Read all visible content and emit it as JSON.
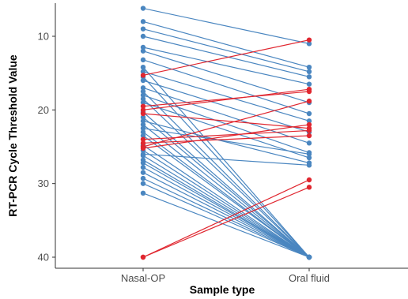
{
  "chart_data": {
    "type": "line",
    "xlabel": "Sample type",
    "ylabel": "RT-PCR Cycle Threshold Value",
    "categories": [
      "Nasal-OP",
      "Oral fluid"
    ],
    "y_reversed": true,
    "ylim": [
      5.5,
      41.5
    ],
    "y_ticks": [
      10,
      20,
      30,
      40
    ],
    "grid": false,
    "legend": "none",
    "colors": {
      "blue": "#4a86c0",
      "red": "#e0262f",
      "axis": "#333333",
      "text": "#4d4d4d"
    },
    "series": [
      {
        "color": "red",
        "values": [
          40.0,
          30.5
        ]
      },
      {
        "color": "red",
        "values": [
          40.0,
          29.5
        ]
      },
      {
        "color": "red",
        "values": [
          15.3,
          10.5
        ]
      },
      {
        "color": "red",
        "values": [
          25.0,
          18.8
        ]
      },
      {
        "color": "red",
        "values": [
          19.5,
          17.5
        ]
      },
      {
        "color": "red",
        "values": [
          20.0,
          17.2
        ]
      },
      {
        "color": "red",
        "values": [
          25.2,
          22.0
        ]
      },
      {
        "color": "red",
        "values": [
          24.0,
          22.8
        ]
      },
      {
        "color": "red",
        "values": [
          24.5,
          23.5
        ]
      },
      {
        "color": "red",
        "values": [
          20.5,
          22.5
        ]
      },
      {
        "color": "blue",
        "values": [
          6.2,
          11.0
        ]
      },
      {
        "color": "blue",
        "values": [
          8.0,
          14.2
        ]
      },
      {
        "color": "blue",
        "values": [
          9.0,
          14.8
        ]
      },
      {
        "color": "blue",
        "values": [
          10.0,
          15.5
        ]
      },
      {
        "color": "blue",
        "values": [
          11.5,
          16.5
        ]
      },
      {
        "color": "blue",
        "values": [
          12.0,
          19.0
        ]
      },
      {
        "color": "blue",
        "values": [
          13.2,
          20.5
        ]
      },
      {
        "color": "blue",
        "values": [
          14.8,
          21.5
        ]
      },
      {
        "color": "blue",
        "values": [
          16.0,
          23.0
        ]
      },
      {
        "color": "blue",
        "values": [
          17.0,
          24.5
        ]
      },
      {
        "color": "blue",
        "values": [
          18.0,
          25.8
        ]
      },
      {
        "color": "blue",
        "values": [
          19.0,
          26.5
        ]
      },
      {
        "color": "blue",
        "values": [
          21.5,
          27.2
        ]
      },
      {
        "color": "blue",
        "values": [
          22.5,
          26.0
        ]
      },
      {
        "color": "blue",
        "values": [
          26.0,
          27.5
        ]
      },
      {
        "color": "blue",
        "values": [
          14.2,
          40.0
        ]
      },
      {
        "color": "blue",
        "values": [
          15.5,
          40.0
        ]
      },
      {
        "color": "blue",
        "values": [
          17.5,
          40.0
        ]
      },
      {
        "color": "blue",
        "values": [
          18.5,
          40.0
        ]
      },
      {
        "color": "blue",
        "values": [
          20.3,
          40.0
        ]
      },
      {
        "color": "blue",
        "values": [
          21.0,
          40.0
        ]
      },
      {
        "color": "blue",
        "values": [
          22.0,
          40.0
        ]
      },
      {
        "color": "blue",
        "values": [
          23.0,
          40.0
        ]
      },
      {
        "color": "blue",
        "values": [
          23.5,
          40.0
        ]
      },
      {
        "color": "blue",
        "values": [
          24.8,
          40.0
        ]
      },
      {
        "color": "blue",
        "values": [
          25.5,
          40.0
        ]
      },
      {
        "color": "blue",
        "values": [
          26.2,
          40.0
        ]
      },
      {
        "color": "blue",
        "values": [
          26.8,
          40.0
        ]
      },
      {
        "color": "blue",
        "values": [
          27.2,
          40.0
        ]
      },
      {
        "color": "blue",
        "values": [
          27.8,
          40.0
        ]
      },
      {
        "color": "blue",
        "values": [
          28.5,
          40.0
        ]
      },
      {
        "color": "blue",
        "values": [
          29.3,
          40.0
        ]
      },
      {
        "color": "blue",
        "values": [
          30.0,
          40.0
        ]
      },
      {
        "color": "blue",
        "values": [
          31.3,
          40.0
        ]
      }
    ]
  }
}
